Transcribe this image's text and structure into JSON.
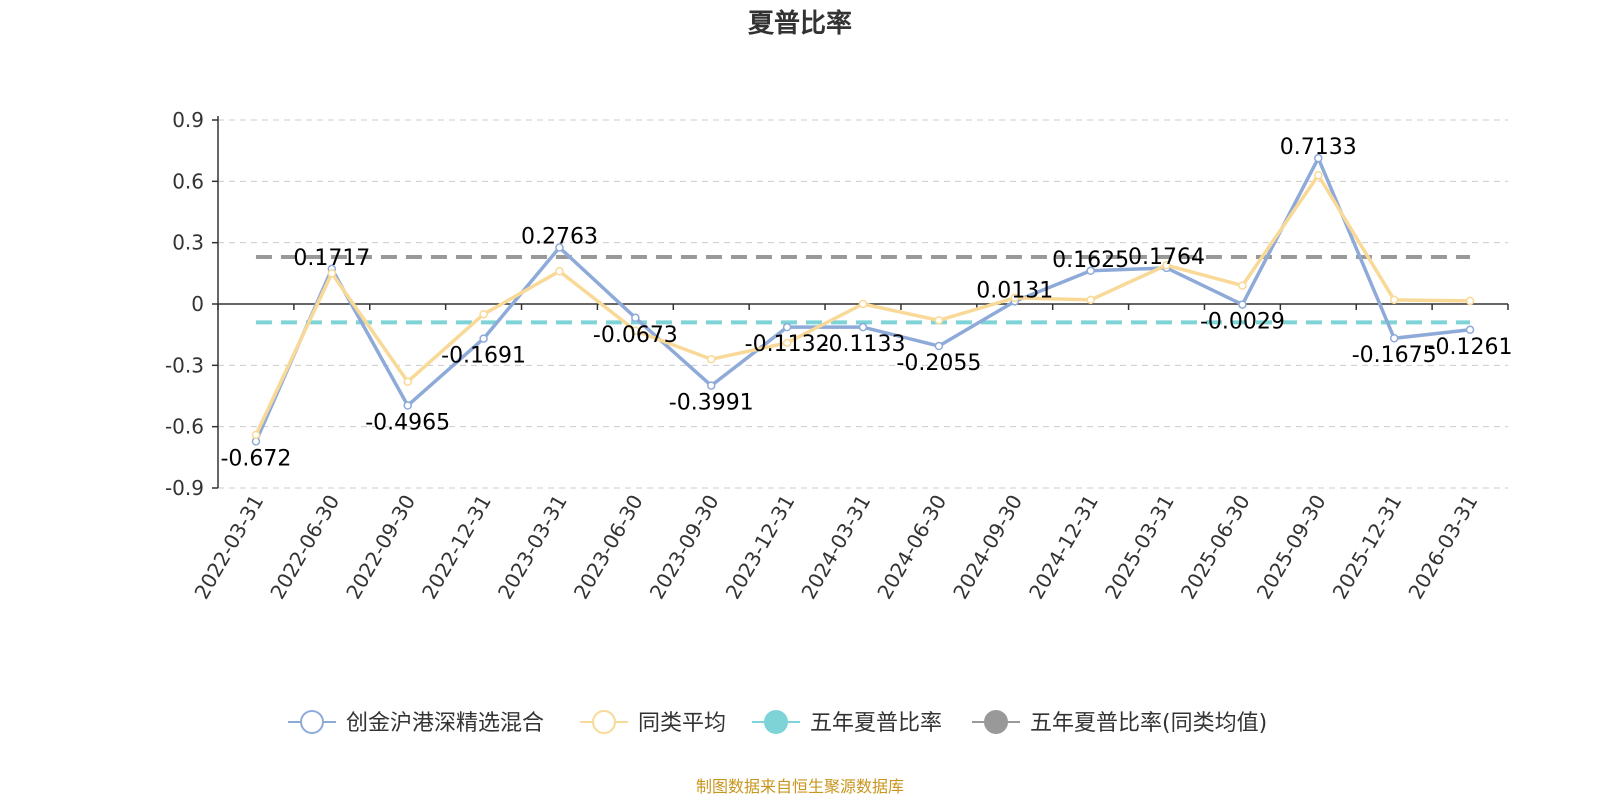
{
  "chart_data": {
    "type": "line",
    "title": "夏普比率",
    "categories": [
      "2022-03-31",
      "2022-06-30",
      "2022-09-30",
      "2022-12-31",
      "2023-03-31",
      "2023-06-30",
      "2023-09-30",
      "2023-12-31",
      "2024-03-31",
      "2024-06-30",
      "2024-09-30",
      "2024-12-31",
      "2025-03-31",
      "2025-06-30",
      "2025-09-30",
      "2025-12-31",
      "2026-03-31"
    ],
    "y_ticks": [
      "0.9",
      "0.6",
      "0.3",
      "0",
      "-0.3",
      "-0.6",
      "-0.9"
    ],
    "ylim": [
      -0.9,
      0.9
    ],
    "grid": true,
    "legend_position": "bottom",
    "series": [
      {
        "name": "创金沪港深精选混合",
        "color": "#8eaad8",
        "values": [
          -0.672,
          0.1717,
          -0.4965,
          -0.1691,
          0.2763,
          -0.0673,
          -0.3991,
          -0.1132,
          -0.1133,
          -0.2055,
          0.0131,
          0.1625,
          0.1764,
          -0.0029,
          0.7133,
          -0.1675,
          -0.1261
        ],
        "labels": [
          "-0.672",
          "0.1717",
          "-0.4965",
          "-0.1691",
          "0.2763",
          "-0.0673",
          "-0.3991",
          "-0.1132",
          "-0.1133",
          "-0.2055",
          "0.0131",
          "0.1625",
          "0.1764",
          "-0.0029",
          "0.7133",
          "-0.1675",
          "-0.1261"
        ]
      },
      {
        "name": "同类平均",
        "color": "#f9d998",
        "values": [
          -0.64,
          0.15,
          -0.38,
          -0.05,
          0.16,
          -0.13,
          -0.27,
          -0.19,
          0.0,
          -0.08,
          0.03,
          0.02,
          0.19,
          0.09,
          0.63,
          0.02,
          0.015
        ]
      },
      {
        "name": "五年夏普比率",
        "color": "#7ed3d6",
        "value": -0.09
      },
      {
        "name": "五年夏普比率(同类均值)",
        "color": "#999999",
        "value": 0.23
      }
    ],
    "source_text": "制图数据来自恒生聚源数据库"
  }
}
